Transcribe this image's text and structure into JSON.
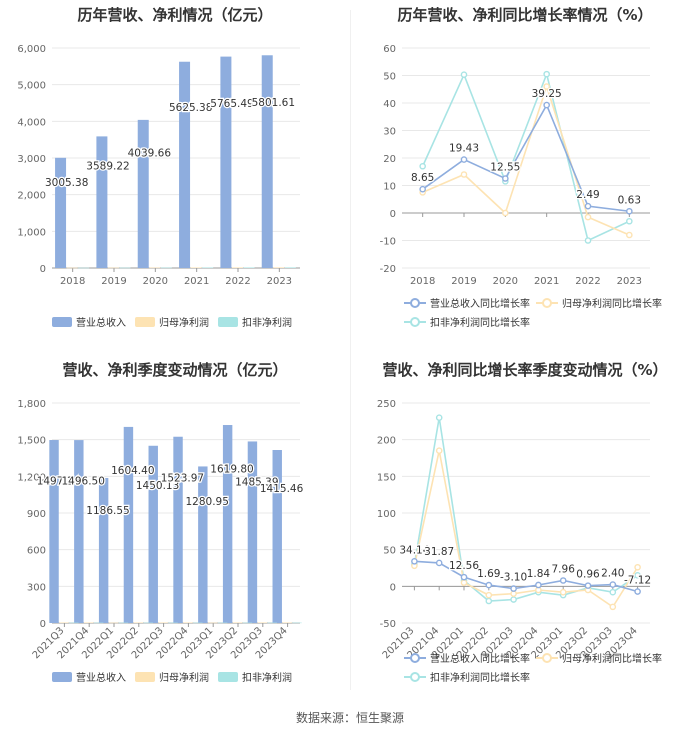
{
  "source": "数据来源：恒生聚源",
  "colors": {
    "revenue": "#8eadde",
    "parent": "#fde3b3",
    "deducted": "#a8e4e4",
    "grid": "#e8e8e8",
    "axis": "#999999"
  },
  "chart_data": [
    {
      "id": "annual_amount",
      "type": "bar",
      "title": "历年营收、净利情况（亿元）",
      "categories": [
        "2018",
        "2019",
        "2020",
        "2021",
        "2022",
        "2023"
      ],
      "ylim": [
        0,
        6000
      ],
      "yticks": [
        "0",
        "1,000",
        "2,000",
        "3,000",
        "4,000",
        "5,000",
        "6,000"
      ],
      "series": [
        {
          "name": "营业总收入",
          "values": [
            3005.38,
            3589.22,
            4039.66,
            5625.38,
            5765.49,
            5801.61
          ],
          "labels": [
            "3005.38",
            "3589.22",
            "4039.66",
            "5625.38",
            "5765.49",
            "5801.61"
          ]
        },
        {
          "name": "归母净利润",
          "values": [
            8,
            10,
            12,
            14,
            15,
            16
          ]
        },
        {
          "name": "扣非净利润",
          "values": [
            7,
            9,
            11,
            13,
            14,
            15
          ]
        }
      ],
      "legend_position": "bottom"
    },
    {
      "id": "annual_growth",
      "type": "line",
      "title": "历年营收、净利同比增长率情况（%）",
      "categories": [
        "2018",
        "2019",
        "2020",
        "2021",
        "2022",
        "2023"
      ],
      "ylim": [
        -20,
        60
      ],
      "yticks": [
        "-20",
        "-10",
        "0",
        "10",
        "20",
        "30",
        "40",
        "50",
        "60"
      ],
      "series": [
        {
          "name": "营业总收入同比增长率",
          "values": [
            8.65,
            19.43,
            12.55,
            39.25,
            2.49,
            0.63
          ],
          "labels": [
            "8.65",
            "19.43",
            "12.55",
            "39.25",
            "2.49",
            "0.63"
          ]
        },
        {
          "name": "归母净利润同比增长率",
          "values": [
            7.5,
            14,
            0,
            46,
            -1.5,
            -8
          ]
        },
        {
          "name": "扣非净利润同比增长率",
          "values": [
            17,
            50.3,
            11.5,
            50.5,
            -10,
            -3
          ]
        }
      ],
      "legend_position": "bottom"
    },
    {
      "id": "quarterly_amount",
      "type": "bar",
      "title": "营收、净利季度变动情况（亿元）",
      "categories": [
        "2021Q3",
        "2021Q4",
        "2022Q1",
        "2022Q2",
        "2022Q3",
        "2022Q4",
        "2023Q1",
        "2023Q2",
        "2023Q3",
        "2023Q4"
      ],
      "ylim": [
        0,
        1800
      ],
      "yticks": [
        "0",
        "300",
        "600",
        "900",
        "1,200",
        "1,500",
        "1,800"
      ],
      "series": [
        {
          "name": "营业总收入",
          "values": [
            1497.14,
            1496.5,
            1186.55,
            1604.4,
            1450.13,
            1523.97,
            1280.95,
            1619.8,
            1485.39,
            1415.46
          ],
          "labels": [
            "1497.14",
            "1496.50",
            "1186.55",
            "1604.40",
            "1450.13",
            "1523.97",
            "1280.95",
            "1619.80",
            "1485.39",
            "1415.46"
          ]
        },
        {
          "name": "归母净利润",
          "values": [
            4,
            4,
            3,
            4,
            4,
            4,
            3,
            4,
            4,
            4
          ]
        },
        {
          "name": "扣非净利润",
          "values": [
            3,
            3,
            3,
            3,
            3,
            3,
            3,
            3,
            3,
            3
          ]
        }
      ],
      "legend_position": "bottom"
    },
    {
      "id": "quarterly_growth",
      "type": "line",
      "title": "营收、净利同比增长率季度变动情况（%）",
      "categories": [
        "2021Q3",
        "2021Q4",
        "2022Q1",
        "2022Q2",
        "2022Q3",
        "2022Q4",
        "2023Q1",
        "2023Q2",
        "2023Q3",
        "2023Q4"
      ],
      "ylim": [
        -50,
        250
      ],
      "yticks": [
        "-50",
        "0",
        "50",
        "100",
        "150",
        "200",
        "250"
      ],
      "series": [
        {
          "name": "营业总收入同比增长率",
          "values": [
            34.14,
            31.87,
            12.56,
            1.69,
            -3.1,
            1.84,
            7.96,
            0.96,
            2.4,
            -7.12
          ],
          "labels": [
            "34.14",
            "31.87",
            "12.56",
            "1.69",
            "-3.10",
            "1.84",
            "7.96",
            "0.96",
            "2.40",
            "-7.12"
          ]
        },
        {
          "name": "归母净利润同比增长率",
          "values": [
            28,
            185,
            5,
            -12,
            -10,
            -5,
            -8,
            -5,
            -28,
            26
          ]
        },
        {
          "name": "扣非净利润同比增长率",
          "values": [
            30,
            230,
            8,
            -20,
            -18,
            -8,
            -12,
            -2,
            -8,
            15
          ]
        }
      ],
      "legend_position": "bottom"
    }
  ]
}
